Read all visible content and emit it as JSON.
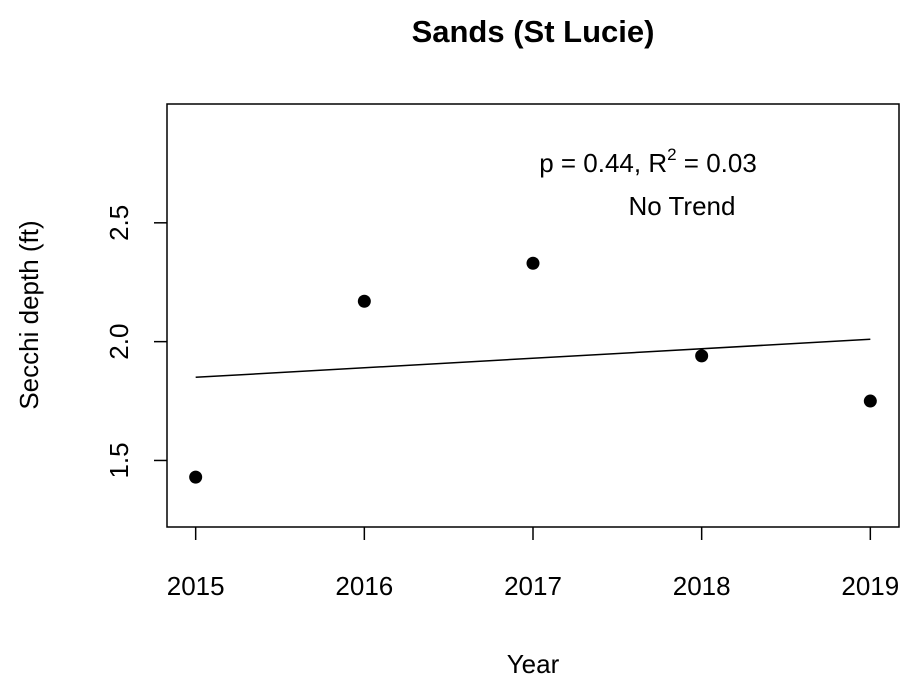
{
  "chart_data": {
    "type": "scatter",
    "title": "Sands (St Lucie)",
    "x_label": "Year",
    "y_label": "Secchi depth (ft)",
    "x": [
      2015,
      2016,
      2017,
      2018,
      2019
    ],
    "values": [
      1.43,
      2.17,
      2.33,
      1.94,
      1.75
    ],
    "color": "#000000",
    "trend": {
      "x": [
        2015,
        2019
      ],
      "values": [
        1.85,
        2.01
      ]
    },
    "annotation": {
      "prefix": "p = 0.44, R",
      "sup": "2",
      "suffix": " = 0.03",
      "trend": "No Trend"
    },
    "xlim": [
      2014.83,
      2019.17
    ],
    "xticks": [
      2015,
      2016,
      2017,
      2018,
      2019
    ],
    "ylim": [
      1.22,
      3.0
    ],
    "yticks": [
      1.5,
      {
        "value": 2,
        "label": "2.0"
      },
      2.5
    ]
  }
}
